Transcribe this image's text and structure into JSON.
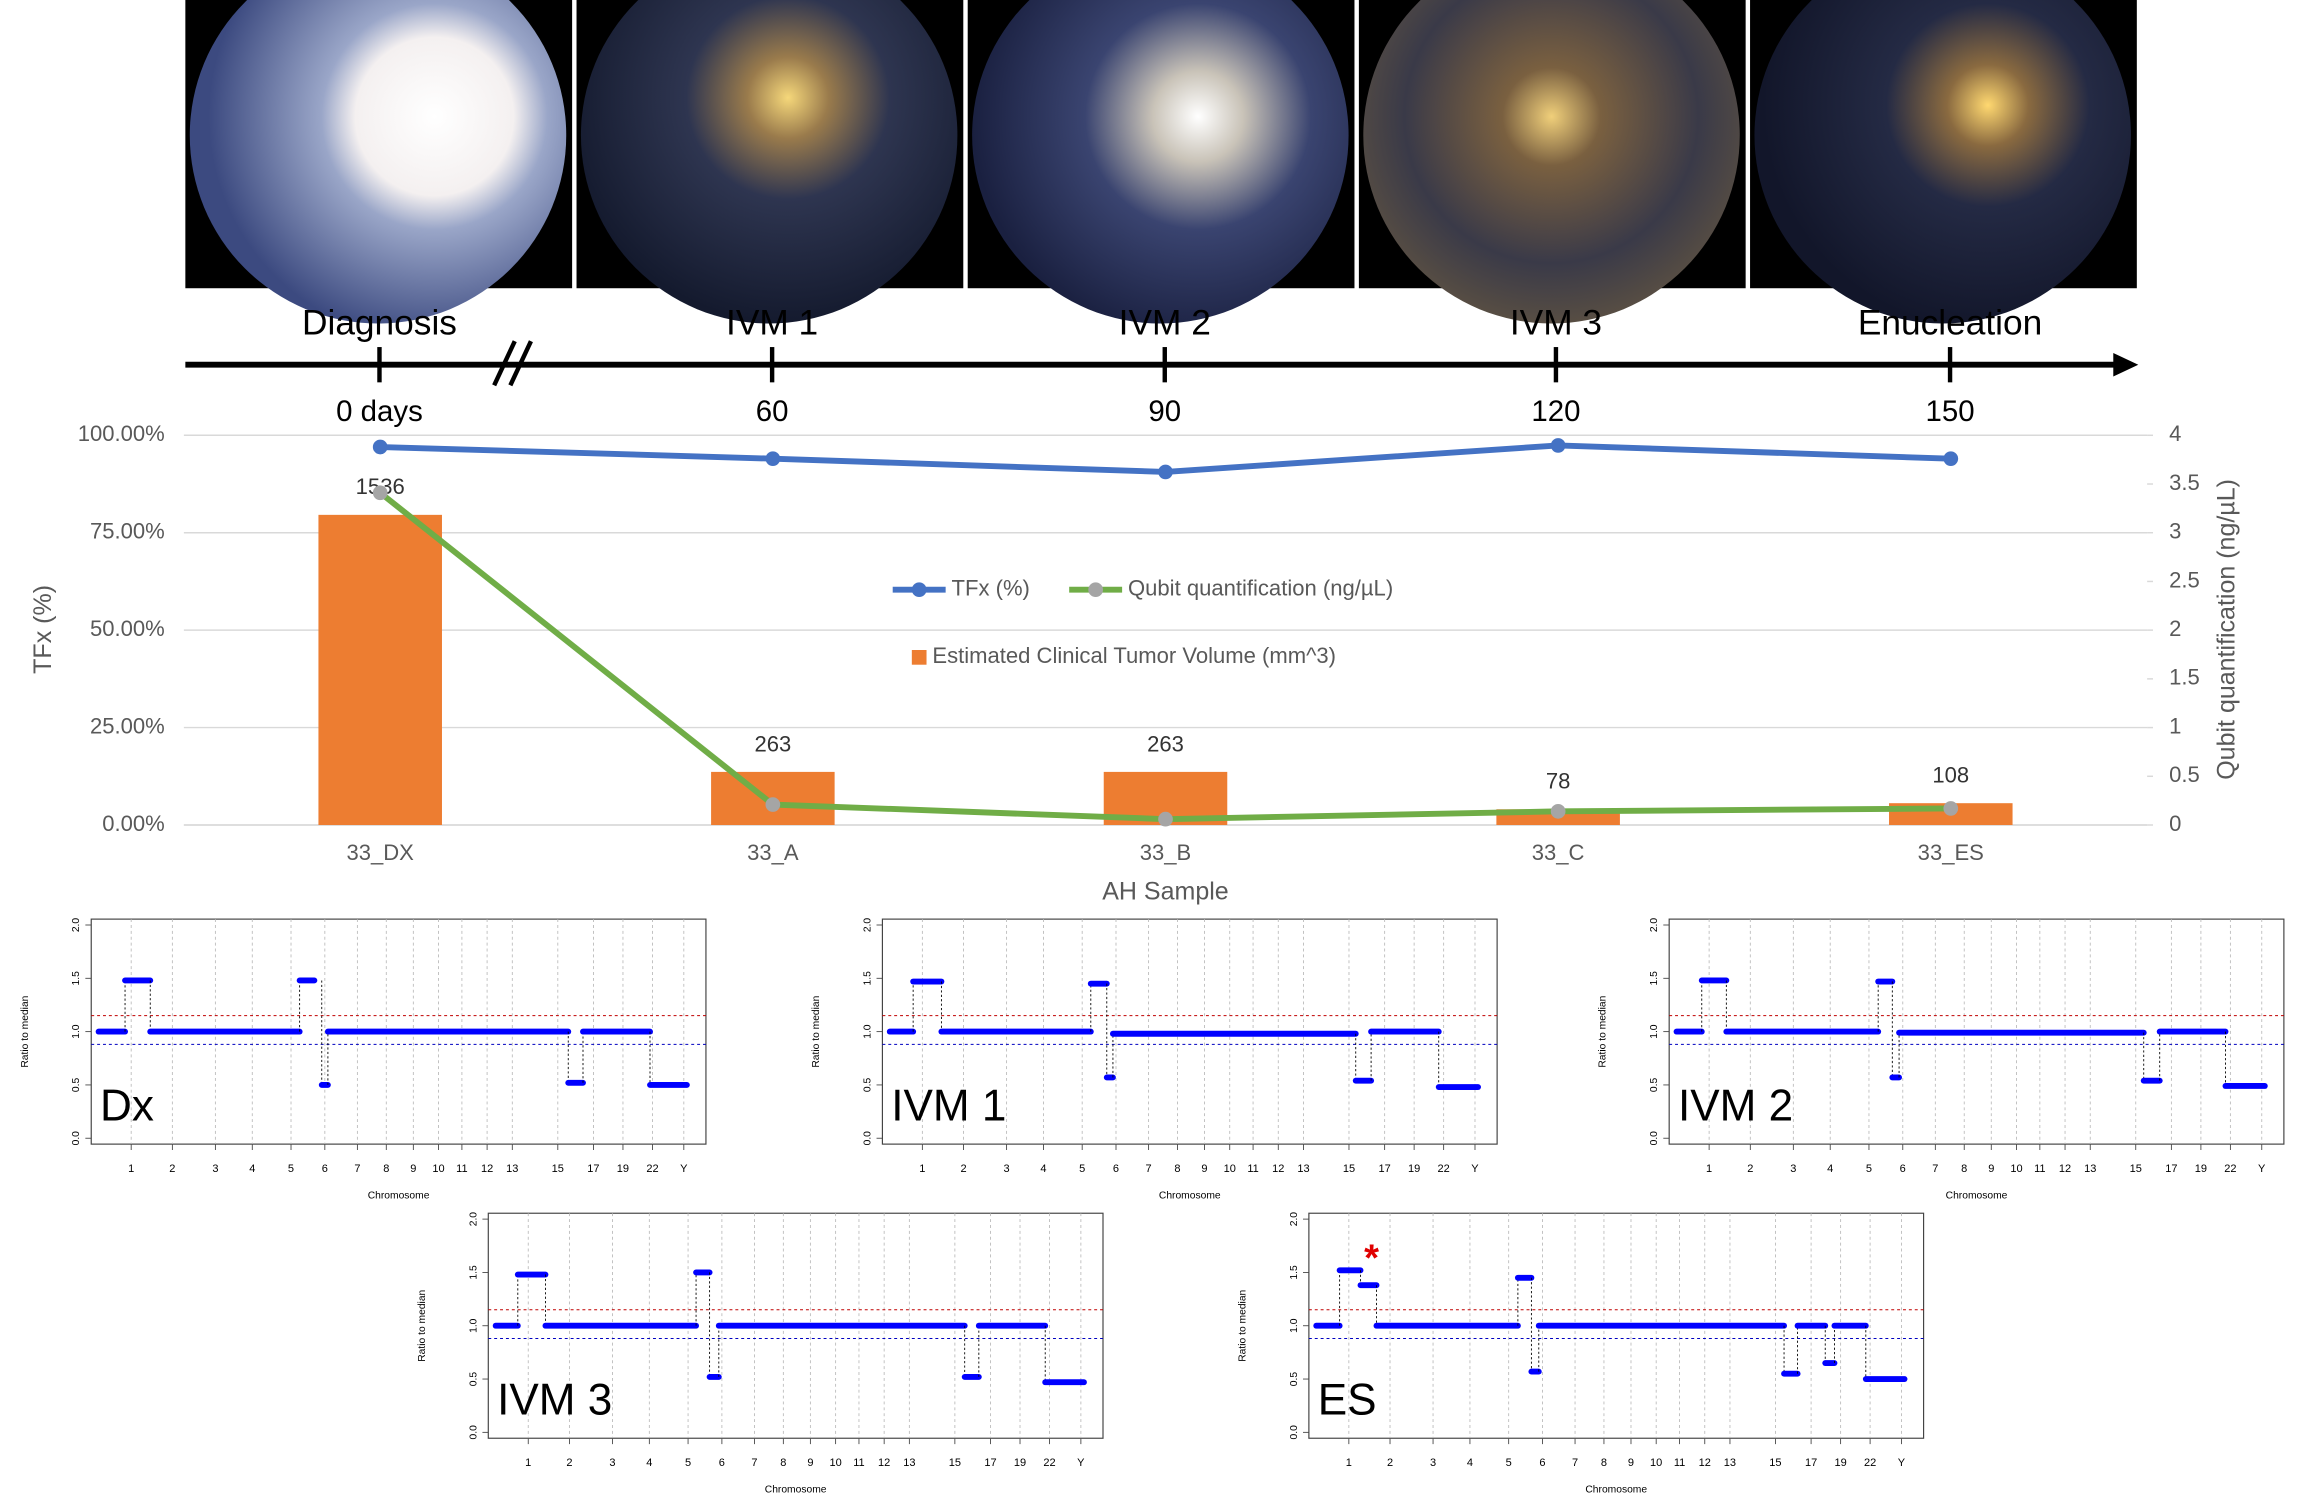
{
  "timeline": {
    "events": [
      "Diagnosis",
      "IVM 1",
      "IVM 2",
      "IVM 3",
      "Enucleation"
    ],
    "days": [
      "0 days",
      "60",
      "90",
      "120",
      "150"
    ]
  },
  "chart_data": {
    "type": "bar",
    "categories": [
      "33_DX",
      "33_A",
      "33_B",
      "33_C",
      "33_ES"
    ],
    "xlabel": "AH Sample",
    "ylabel": "TFx (%)",
    "y2label": "Qubit quantification (ng/µL)",
    "ylim": [
      0,
      100
    ],
    "yticks": [
      {
        "value": 0,
        "label": "0.00%"
      },
      {
        "value": 25,
        "label": "25.00%"
      },
      {
        "value": 50,
        "label": "50.00%"
      },
      {
        "value": 75,
        "label": "75.00%"
      },
      {
        "value": 100,
        "label": "100.00%"
      }
    ],
    "y2lim": [
      0,
      4
    ],
    "y2ticks": [
      0,
      0.5,
      1,
      1.5,
      2,
      2.5,
      3,
      3.5,
      4
    ],
    "y3lim": [
      0,
      1930
    ],
    "grid": true,
    "legend": "center",
    "series": [
      {
        "name": "Estimated Clinical Tumor Volume (mm^3)",
        "type": "bar",
        "color": "#ed7d31",
        "axis": "y3",
        "values": [
          1536,
          263,
          263,
          78,
          108
        ]
      },
      {
        "name": "TFx (%)",
        "type": "line",
        "color": "#4472c4",
        "marker_color": "#4472c4",
        "values": [
          97,
          94,
          90.6,
          97.4,
          94
        ]
      },
      {
        "name": "Qubit quantification (ng/µL)",
        "type": "line",
        "color": "#70ad47",
        "marker_color": "#a5a5a5",
        "axis": "y2",
        "values": [
          3.41,
          0.21,
          0.06,
          0.14,
          0.17
        ]
      }
    ]
  },
  "cnv": {
    "type": "line",
    "xlabel": "Chromosome",
    "ylabel": "Ratio to median",
    "ylim": [
      0,
      2
    ],
    "yticks": [
      {
        "value": 0,
        "label": "0.0"
      },
      {
        "value": 0.5,
        "label": "0.5"
      },
      {
        "value": 1,
        "label": "1.0"
      },
      {
        "value": 1.5,
        "label": "1.5"
      },
      {
        "value": 2,
        "label": "2.0"
      }
    ],
    "xlim": [
      0,
      100
    ],
    "xticks": [
      {
        "value": 6.5,
        "label": "1"
      },
      {
        "value": 13.2,
        "label": "2"
      },
      {
        "value": 20.2,
        "label": "3"
      },
      {
        "value": 26.2,
        "label": "4"
      },
      {
        "value": 32.5,
        "label": "5"
      },
      {
        "value": 38,
        "label": "6"
      },
      {
        "value": 43.3,
        "label": "7"
      },
      {
        "value": 48,
        "label": "8"
      },
      {
        "value": 52.4,
        "label": "9"
      },
      {
        "value": 56.5,
        "label": "10"
      },
      {
        "value": 60.3,
        "label": "11"
      },
      {
        "value": 64.4,
        "label": "12"
      },
      {
        "value": 68.5,
        "label": "13"
      },
      {
        "value": 75.9,
        "label": "15"
      },
      {
        "value": 81.7,
        "label": "17"
      },
      {
        "value": 86.5,
        "label": "19"
      },
      {
        "value": 91.3,
        "label": "22"
      },
      {
        "value": 96.4,
        "label": "Y"
      }
    ],
    "upper_threshold": 1.15,
    "lower_threshold": 0.88,
    "segment_color": "#0000ff",
    "panels": [
      {
        "label": "Dx",
        "seg_start": [
          1.2,
          5.5,
          9.6,
          33.9,
          37.5,
          38.5,
          77.6,
          80,
          90.9
        ],
        "seg_end": [
          5.5,
          9.6,
          33.9,
          36.3,
          38.5,
          77.6,
          80,
          90.9,
          96.9
        ],
        "values": [
          1.0,
          1.48,
          1.0,
          1.48,
          0.5,
          1.0,
          0.52,
          1.0,
          0.5
        ]
      },
      {
        "label": "IVM 1",
        "seg_start": [
          1.2,
          5,
          9.6,
          33.9,
          36.5,
          37.5,
          77,
          79.5,
          90.5
        ],
        "seg_end": [
          5,
          9.6,
          33.9,
          36.5,
          37.5,
          77,
          79.5,
          90.5,
          96.9
        ],
        "values": [
          1.0,
          1.47,
          1.0,
          1.45,
          0.57,
          0.98,
          0.54,
          1.0,
          0.48
        ]
      },
      {
        "label": "IVM 2",
        "seg_start": [
          1.2,
          5.3,
          9.3,
          34,
          36.3,
          37.4,
          77.2,
          79.8,
          90.5
        ],
        "seg_end": [
          5.3,
          9.3,
          34,
          36.3,
          37.4,
          77.2,
          79.8,
          90.5,
          96.9
        ],
        "values": [
          1.0,
          1.48,
          1.0,
          1.47,
          0.57,
          0.99,
          0.54,
          1.0,
          0.49
        ]
      },
      {
        "label": "IVM 3",
        "seg_start": [
          1.2,
          4.8,
          9.3,
          33.8,
          36,
          37.5,
          77.5,
          79.8,
          90.6
        ],
        "seg_end": [
          4.8,
          9.3,
          33.8,
          36,
          37.5,
          77.5,
          79.8,
          90.6,
          96.9
        ],
        "values": [
          1.0,
          1.48,
          1.0,
          1.5,
          0.52,
          1.0,
          0.52,
          1.0,
          0.47
        ]
      },
      {
        "label": "ES",
        "annotation": "*",
        "seg_start": [
          1.2,
          5,
          8.4,
          11,
          34,
          36.2,
          37.4,
          77.3,
          79.5,
          84,
          85.5,
          90.6
        ],
        "seg_end": [
          5,
          8.4,
          11,
          34,
          36.2,
          37.4,
          77.3,
          79.5,
          84,
          85.5,
          90.6,
          96.9
        ],
        "values": [
          1.0,
          1.52,
          1.38,
          1.0,
          1.45,
          0.57,
          1.0,
          0.55,
          1.0,
          0.65,
          1.0,
          0.5
        ]
      }
    ]
  }
}
